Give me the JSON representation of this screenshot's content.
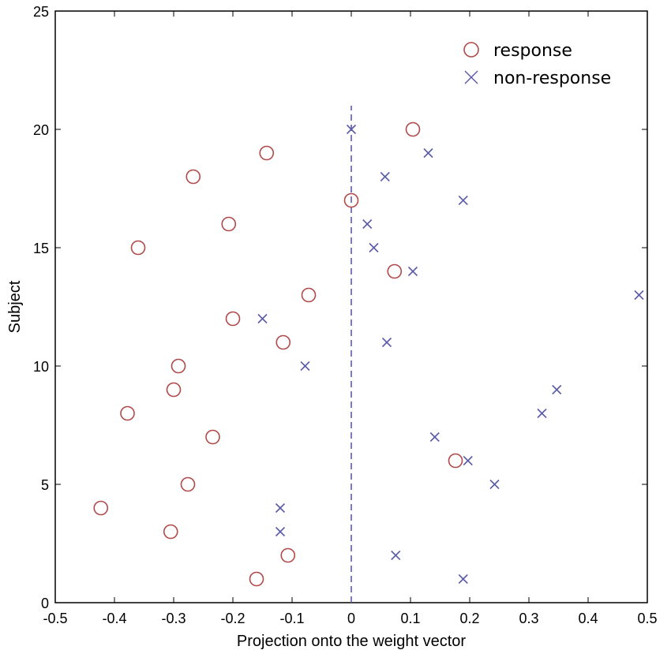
{
  "chart_data": {
    "type": "scatter",
    "title": "",
    "xlabel": "Projection onto the weight vector",
    "ylabel": "Subject",
    "xlim": [
      -0.5,
      0.5
    ],
    "ylim": [
      0,
      25
    ],
    "xticks": [
      -0.5,
      -0.4,
      -0.3,
      -0.2,
      -0.1,
      0,
      0.1,
      0.2,
      0.3,
      0.4,
      0.5
    ],
    "xtick_labels": [
      "-0.5",
      "-0.4",
      "-0.3",
      "-0.2",
      "-0.1",
      "0",
      "0.1",
      "0.2",
      "0.3",
      "0.4",
      "0.5"
    ],
    "yticks": [
      0,
      5,
      10,
      15,
      20,
      25
    ],
    "ytick_labels": [
      "0",
      "5",
      "10",
      "15",
      "20",
      "25"
    ],
    "grid": false,
    "legend_position": "top-right",
    "reference_line": {
      "x": 0,
      "y_range": [
        0,
        21
      ],
      "style": "dashed",
      "color": "#5b5ba8"
    },
    "series": [
      {
        "name": "response",
        "marker": "circle",
        "color": "#b04a4a",
        "points": [
          {
            "x": -0.16,
            "y": 1
          },
          {
            "x": -0.107,
            "y": 2
          },
          {
            "x": -0.305,
            "y": 3
          },
          {
            "x": -0.423,
            "y": 4
          },
          {
            "x": -0.276,
            "y": 5
          },
          {
            "x": 0.176,
            "y": 6
          },
          {
            "x": -0.234,
            "y": 7
          },
          {
            "x": -0.378,
            "y": 8
          },
          {
            "x": -0.3,
            "y": 9
          },
          {
            "x": -0.292,
            "y": 10
          },
          {
            "x": -0.115,
            "y": 11
          },
          {
            "x": -0.2,
            "y": 12
          },
          {
            "x": -0.072,
            "y": 13
          },
          {
            "x": 0.073,
            "y": 14
          },
          {
            "x": -0.36,
            "y": 15
          },
          {
            "x": -0.207,
            "y": 16
          },
          {
            "x": 0.0,
            "y": 17
          },
          {
            "x": -0.267,
            "y": 18
          },
          {
            "x": -0.143,
            "y": 19
          },
          {
            "x": 0.104,
            "y": 20
          }
        ]
      },
      {
        "name": "non-response",
        "marker": "x",
        "color": "#5b5ba8",
        "points": [
          {
            "x": 0.189,
            "y": 1
          },
          {
            "x": 0.075,
            "y": 2
          },
          {
            "x": -0.12,
            "y": 3
          },
          {
            "x": -0.12,
            "y": 4
          },
          {
            "x": 0.242,
            "y": 5
          },
          {
            "x": 0.197,
            "y": 6
          },
          {
            "x": 0.141,
            "y": 7
          },
          {
            "x": 0.322,
            "y": 8
          },
          {
            "x": 0.347,
            "y": 9
          },
          {
            "x": -0.078,
            "y": 10
          },
          {
            "x": 0.06,
            "y": 11
          },
          {
            "x": -0.15,
            "y": 12
          },
          {
            "x": 0.486,
            "y": 13
          },
          {
            "x": 0.104,
            "y": 14
          },
          {
            "x": 0.038,
            "y": 15
          },
          {
            "x": 0.027,
            "y": 16
          },
          {
            "x": 0.189,
            "y": 17
          },
          {
            "x": 0.057,
            "y": 18
          },
          {
            "x": 0.13,
            "y": 19
          },
          {
            "x": 0.0,
            "y": 20
          }
        ]
      }
    ]
  }
}
